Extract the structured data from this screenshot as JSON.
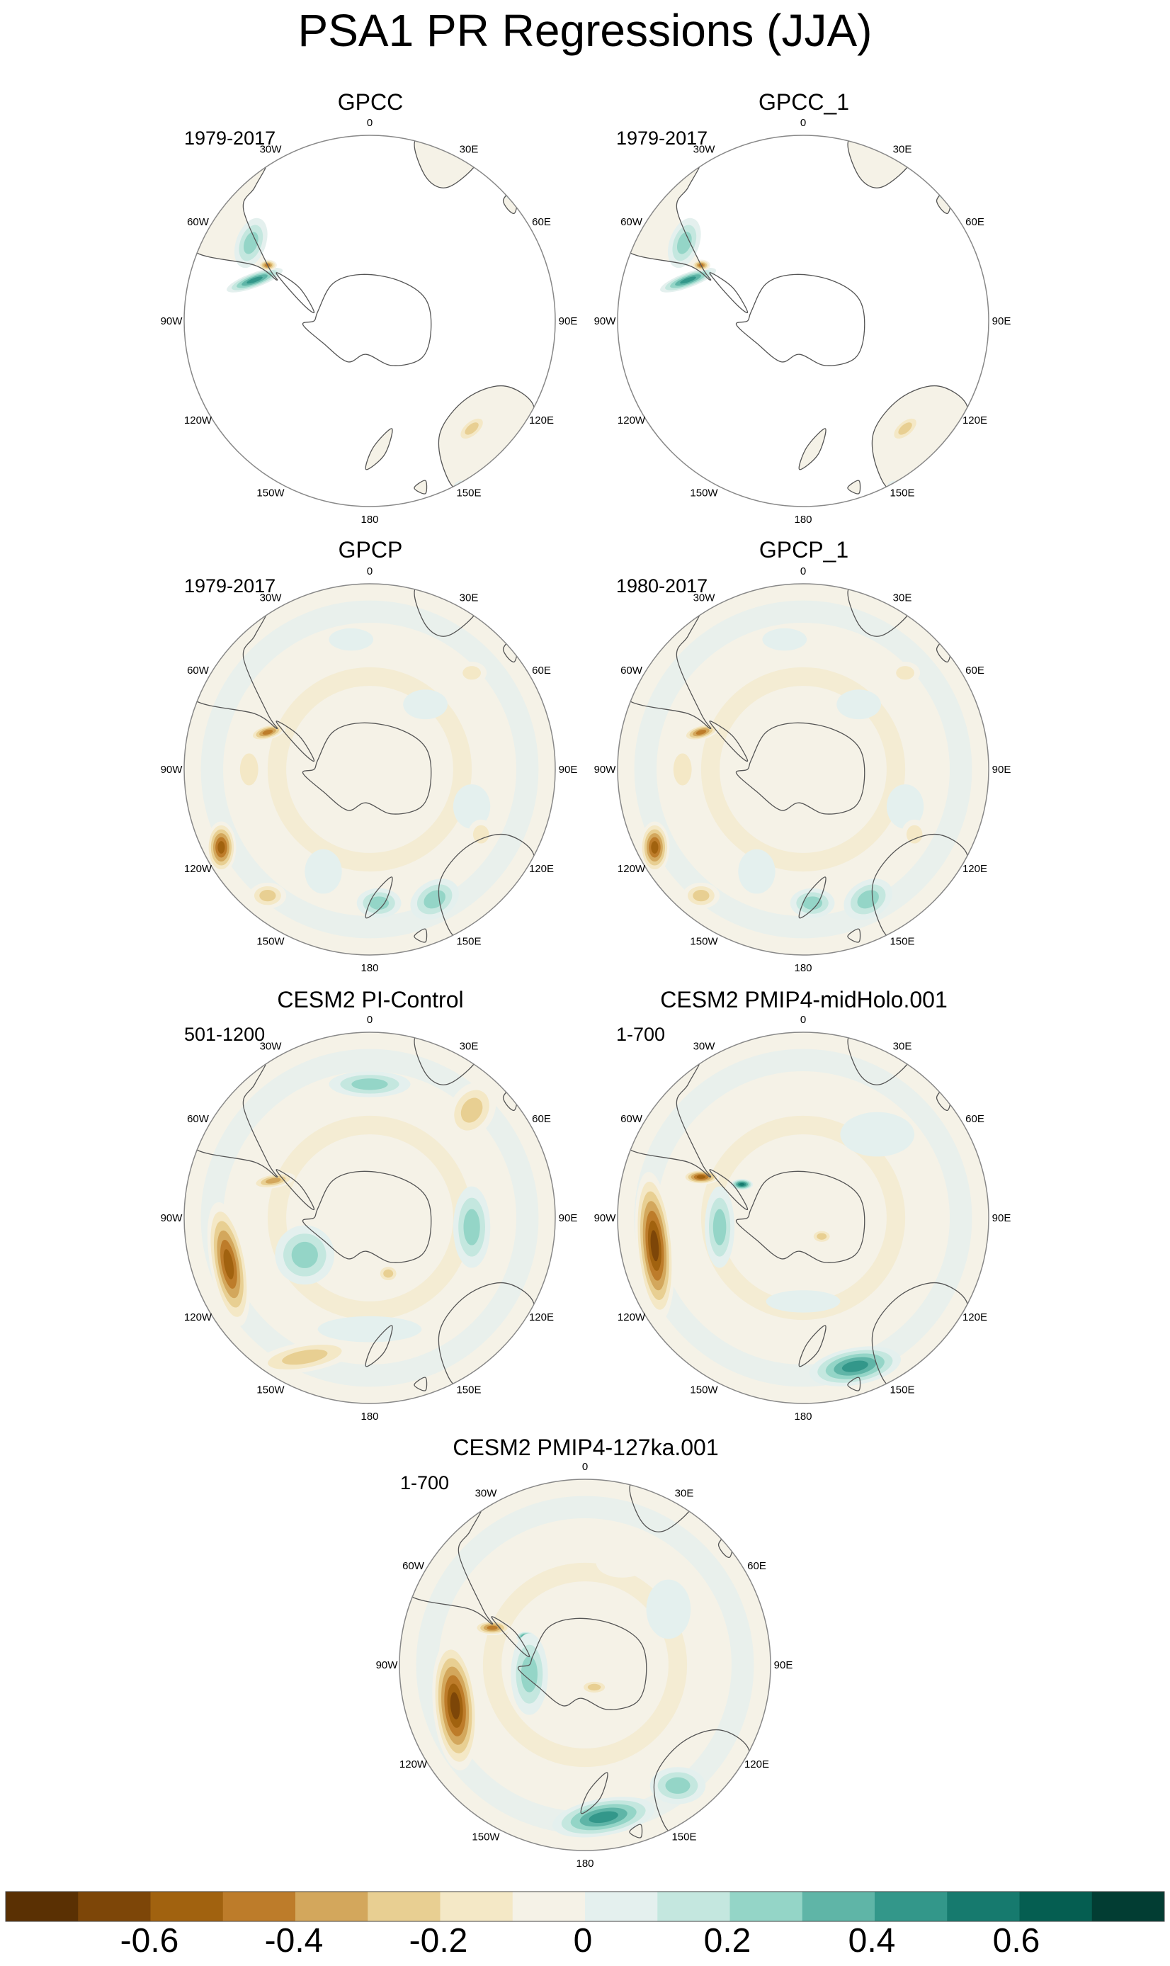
{
  "title": "PSA1 PR Regressions (JJA)",
  "colors": {
    "ocean": "#ffffff",
    "coast": "#555555",
    "rim": "#888888",
    "scale": [
      "#5a3003",
      "#7d4608",
      "#a1620f",
      "#bd7c2a",
      "#d3a75c",
      "#e8cf92",
      "#f4e8c6",
      "#f5f2e7",
      "#e4f0ee",
      "#c4e7df",
      "#94d5c7",
      "#5fb5a7",
      "#33978a",
      "#167a6e",
      "#055e51",
      "#023d33"
    ]
  },
  "colorbar": {
    "labels": [
      "-0.6",
      "-0.4",
      "-0.2",
      "0",
      "0.2",
      "0.4",
      "0.6"
    ]
  },
  "lon_labels": [
    "0",
    "30E",
    "60E",
    "90E",
    "120E",
    "150E",
    "180",
    "150W",
    "120W",
    "90W",
    "60W",
    "30W"
  ],
  "panels": [
    {
      "id": "gpcc",
      "title": "GPCC",
      "period": "1979-2017",
      "field": "land"
    },
    {
      "id": "gpcc1",
      "title": "GPCC_1",
      "period": "1979-2017",
      "field": "land"
    },
    {
      "id": "gpcp",
      "title": "GPCP",
      "period": "1979-2017",
      "field": "obs"
    },
    {
      "id": "gpcp1",
      "title": "GPCP_1",
      "period": "1980-2017",
      "field": "obs"
    },
    {
      "id": "pic",
      "title": "CESM2 PI-Control",
      "period": "501-1200",
      "field": "pic"
    },
    {
      "id": "mh",
      "title": "CESM2 PMIP4-midHolo.001",
      "period": "1-700",
      "field": "mh"
    },
    {
      "id": "lig",
      "title": "CESM2 PMIP4-127ka.001",
      "period": "1-700",
      "field": "lig"
    }
  ]
}
